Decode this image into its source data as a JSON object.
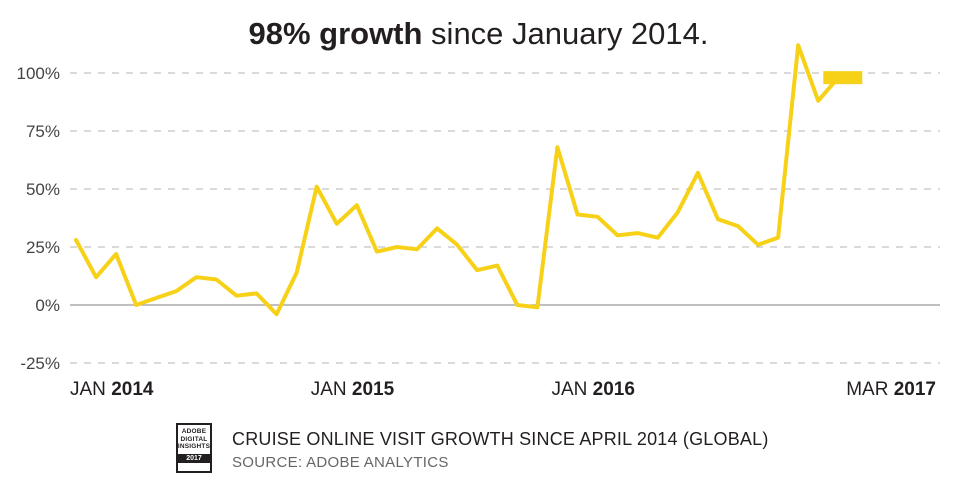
{
  "headline": {
    "bold": "98% growth",
    "rest": " since January 2014."
  },
  "chart_data": {
    "type": "line",
    "title": "98% growth since January 2014.",
    "xlabel": "",
    "ylabel": "",
    "ylim": [
      -25,
      100
    ],
    "yticks": [
      "100%",
      "75%",
      "50%",
      "25%",
      "0%",
      "-25%"
    ],
    "ytick_values": [
      100,
      75,
      50,
      25,
      0,
      -25
    ],
    "grid": "horizontal dashed",
    "xtick_labels": [
      {
        "month": "JAN",
        "year": "2014"
      },
      {
        "month": "JAN",
        "year": "2015"
      },
      {
        "month": "JAN",
        "year": "2016"
      },
      {
        "month": "MAR",
        "year": "2017"
      }
    ],
    "series": [
      {
        "color": "#f7d117",
        "x": [
          "2014-01",
          "2014-02",
          "2014-03",
          "2014-04",
          "2014-05",
          "2014-06",
          "2014-07",
          "2014-08",
          "2014-09",
          "2014-10",
          "2014-11",
          "2014-12",
          "2015-01",
          "2015-02",
          "2015-03",
          "2015-04",
          "2015-05",
          "2015-06",
          "2015-07",
          "2015-08",
          "2015-09",
          "2015-10",
          "2015-11",
          "2015-12",
          "2016-01",
          "2016-02",
          "2016-03",
          "2016-04",
          "2016-05",
          "2016-06",
          "2016-07",
          "2016-08",
          "2016-09",
          "2016-10",
          "2016-11",
          "2016-12",
          "2017-01",
          "2017-02",
          "2017-03"
        ],
        "values": [
          28,
          12,
          22,
          0,
          3,
          6,
          12,
          11,
          4,
          5,
          -4,
          14,
          51,
          35,
          43,
          23,
          25,
          24,
          33,
          26,
          15,
          17,
          0,
          -1,
          68,
          39,
          38,
          30,
          31,
          29,
          40,
          57,
          37,
          34,
          26,
          29,
          112,
          88,
          98
        ]
      }
    ],
    "end_marker_value": 98
  },
  "caption": "CRUISE ONLINE VISIT GROWTH SINCE APRIL 2014 (GLOBAL)",
  "source": "SOURCE: ADOBE ANALYTICS",
  "badge": {
    "line1": "ADOBE",
    "line2": "DIGITAL",
    "line3": "INSIGHTS",
    "year": "2017"
  }
}
